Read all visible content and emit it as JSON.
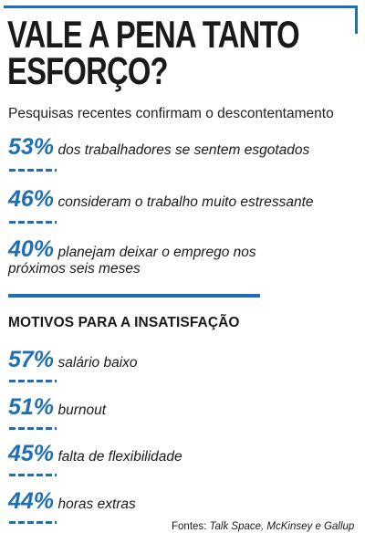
{
  "title": [
    "VALE A PENA TANTO",
    "ESFORÇO?"
  ],
  "subtitle": "Pesquisas recentes confirmam o descontentamento",
  "stats": [
    {
      "value": "53%",
      "text": "dos trabalhadores se sentem esgotados"
    },
    {
      "value": "46%",
      "text": "consideram o trabalho muito estressante"
    },
    {
      "value": "40%",
      "text": "planejam deixar o emprego nos",
      "text2": "próximos seis meses"
    }
  ],
  "section_title": "MOTIVOS PARA A INSATISFAÇÃO",
  "reasons": [
    {
      "value": "57%",
      "text": "salário baixo"
    },
    {
      "value": "51%",
      "text": "burnout"
    },
    {
      "value": "45%",
      "text": "falta de flexibilidade"
    },
    {
      "value": "44%",
      "text": "horas extras"
    }
  ],
  "source": {
    "label": "Fontes:",
    "names": "Talk Space, McKinsey e Gallup"
  },
  "colors": {
    "accent": "#1f6fb5",
    "text": "#1a1a1a",
    "background": "#ffffff"
  }
}
